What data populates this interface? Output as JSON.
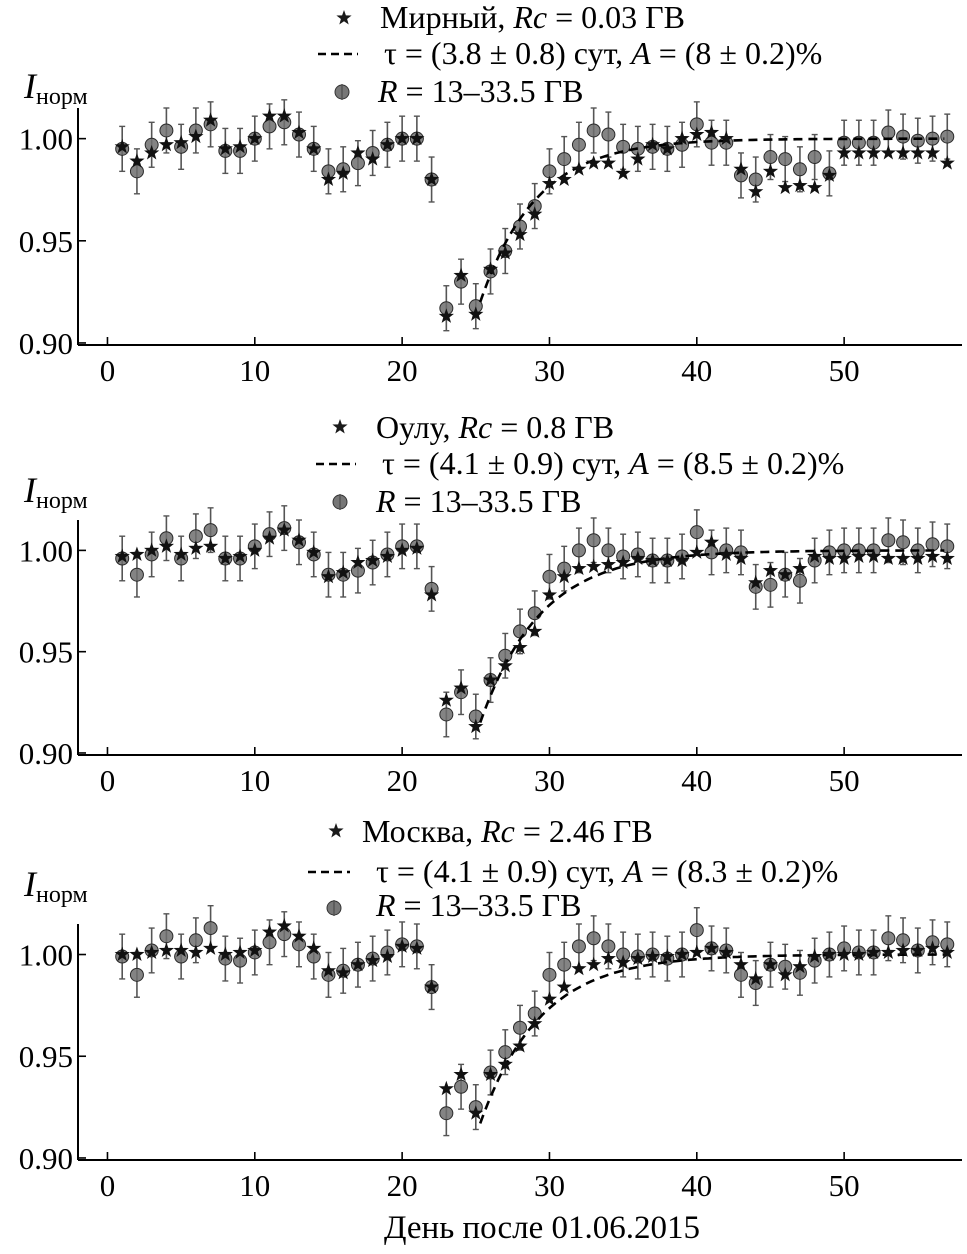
{
  "chart_data": [
    {
      "type": "scatter",
      "station": "Мирный",
      "legend": {
        "station_label": "Мирный, ",
        "rc_var": "Rc",
        "rc_value": " = 0.03 ГВ",
        "fit_tau": "τ = (3.8 ± 0.8) сут, ",
        "fit_a_var": "A",
        "fit_a_value": " = (8 ± 0.2)%",
        "r_var": "R",
        "r_value": " = 13–33.5 ГВ"
      },
      "ylabel": {
        "main": "I",
        "sub": "норм"
      },
      "xlim": [
        -2,
        58
      ],
      "ylim": [
        0.899,
        1.015
      ],
      "xticks": [
        0,
        10,
        20,
        30,
        40,
        50
      ],
      "yticks": [
        0.9,
        0.95,
        1.0
      ],
      "xtick_labels": [
        "0",
        "10",
        "20",
        "30",
        "40",
        "50"
      ],
      "ytick_labels": [
        "0.90",
        "0.95",
        "1.00"
      ],
      "series": [
        {
          "name": "Мирный (stars)",
          "marker": "star",
          "x": [
            1,
            2,
            3,
            4,
            5,
            6,
            7,
            8,
            9,
            10,
            11,
            12,
            13,
            14,
            15,
            16,
            17,
            18,
            19,
            20,
            21,
            22,
            23,
            24,
            25,
            26,
            27,
            28,
            29,
            30,
            31,
            32,
            33,
            34,
            35,
            36,
            37,
            38,
            39,
            40,
            41,
            42,
            43,
            44,
            45,
            46,
            47,
            48,
            49,
            50,
            51,
            52,
            53,
            54,
            55,
            56,
            57
          ],
          "y": [
            0.996,
            0.989,
            0.993,
            0.997,
            0.998,
            1.001,
            1.009,
            0.995,
            0.996,
            1.0,
            1.011,
            1.011,
            1.003,
            0.995,
            0.98,
            0.983,
            0.993,
            0.99,
            0.997,
            1.0,
            1.0,
            0.98,
            0.913,
            0.933,
            0.914,
            0.936,
            0.944,
            0.953,
            0.963,
            0.978,
            0.98,
            0.985,
            0.988,
            0.988,
            0.983,
            0.99,
            0.997,
            0.995,
            1.0,
            1.002,
            1.003,
            1.0,
            0.985,
            0.974,
            0.984,
            0.976,
            0.977,
            0.976,
            0.982,
            0.993,
            0.993,
            0.993,
            0.993,
            0.993,
            0.993,
            0.993,
            0.988
          ]
        },
        {
          "name": "R = 13–33.5 ГВ",
          "marker": "circle",
          "x": [
            1,
            2,
            3,
            4,
            5,
            6,
            7,
            8,
            9,
            10,
            11,
            12,
            13,
            14,
            15,
            16,
            17,
            18,
            19,
            20,
            21,
            22,
            23,
            24,
            25,
            26,
            27,
            28,
            29,
            30,
            31,
            32,
            33,
            34,
            35,
            36,
            37,
            38,
            39,
            40,
            41,
            42,
            43,
            44,
            45,
            46,
            47,
            48,
            49,
            50,
            51,
            52,
            53,
            54,
            55,
            56,
            57
          ],
          "y": [
            0.995,
            0.984,
            0.997,
            1.004,
            0.996,
            1.004,
            1.007,
            0.994,
            0.994,
            1.0,
            1.006,
            1.008,
            1.002,
            0.995,
            0.984,
            0.985,
            0.988,
            0.993,
            0.997,
            1.0,
            1.0,
            0.98,
            0.917,
            0.93,
            0.918,
            0.935,
            0.945,
            0.957,
            0.967,
            0.984,
            0.99,
            0.997,
            1.004,
            1.002,
            0.996,
            0.995,
            0.996,
            0.995,
            0.997,
            1.007,
            0.998,
            0.998,
            0.982,
            0.98,
            0.991,
            0.99,
            0.985,
            0.991,
            0.983,
            0.998,
            0.998,
            0.998,
            1.003,
            1.001,
            0.999,
            1.0,
            1.001
          ],
          "err": 0.011
        },
        {
          "name": "fit",
          "line": "dashed",
          "fit_model": "1 - A*exp(-(x - 25.3)/tau)",
          "tau": 3.8,
          "A": 0.08,
          "fit_start": 25.3,
          "fit_end": 57
        }
      ]
    },
    {
      "type": "scatter",
      "station": "Оулу",
      "legend": {
        "station_label": "Оулу, ",
        "rc_var": "Rc",
        "rc_value": " = 0.8 ГВ",
        "fit_tau": "τ = (4.1 ± 0.9) сут, ",
        "fit_a_var": "A",
        "fit_a_value": " = (8.5 ± 0.2)%",
        "r_var": "R",
        "r_value": " = 13–33.5 ГВ"
      },
      "ylabel": {
        "main": "I",
        "sub": "норм"
      },
      "xlim": [
        -2,
        58
      ],
      "ylim": [
        0.899,
        1.015
      ],
      "xticks": [
        0,
        10,
        20,
        30,
        40,
        50
      ],
      "yticks": [
        0.9,
        0.95,
        1.0
      ],
      "xtick_labels": [
        "0",
        "10",
        "20",
        "30",
        "40",
        "50"
      ],
      "ytick_labels": [
        "0.90",
        "0.95",
        "1.00"
      ],
      "series": [
        {
          "name": "Оулу (stars)",
          "marker": "star",
          "x": [
            1,
            2,
            3,
            4,
            5,
            6,
            7,
            8,
            9,
            10,
            11,
            12,
            13,
            14,
            15,
            16,
            17,
            18,
            19,
            20,
            21,
            22,
            23,
            24,
            25,
            26,
            27,
            28,
            29,
            30,
            31,
            32,
            33,
            34,
            35,
            36,
            37,
            38,
            39,
            40,
            41,
            42,
            43,
            44,
            45,
            46,
            47,
            48,
            49,
            50,
            51,
            52,
            53,
            54,
            55,
            56,
            57
          ],
          "y": [
            0.997,
            0.998,
            1.0,
            1.002,
            0.998,
            1.001,
            1.002,
            0.996,
            0.997,
            1.0,
            1.006,
            1.01,
            1.005,
            0.999,
            0.987,
            0.989,
            0.994,
            0.995,
            0.997,
            1.0,
            1.001,
            0.978,
            0.926,
            0.932,
            0.913,
            0.936,
            0.943,
            0.952,
            0.96,
            0.978,
            0.987,
            0.991,
            0.992,
            0.993,
            0.994,
            0.996,
            0.995,
            0.995,
            0.995,
            0.999,
            1.004,
            0.998,
            0.996,
            0.984,
            0.99,
            0.988,
            0.991,
            0.997,
            0.996,
            0.996,
            0.997,
            0.997,
            0.996,
            0.996,
            0.996,
            0.997,
            0.996
          ]
        },
        {
          "name": "R = 13–33.5 ГВ",
          "marker": "circle",
          "x": [
            1,
            2,
            3,
            4,
            5,
            6,
            7,
            8,
            9,
            10,
            11,
            12,
            13,
            14,
            15,
            16,
            17,
            18,
            19,
            20,
            21,
            22,
            23,
            24,
            25,
            26,
            27,
            28,
            29,
            30,
            31,
            32,
            33,
            34,
            35,
            36,
            37,
            38,
            39,
            40,
            41,
            42,
            43,
            44,
            45,
            46,
            47,
            48,
            49,
            50,
            51,
            52,
            53,
            54,
            55,
            56,
            57
          ],
          "y": [
            0.996,
            0.988,
            0.998,
            1.006,
            0.996,
            1.007,
            1.01,
            0.996,
            0.996,
            1.002,
            1.008,
            1.011,
            1.004,
            0.998,
            0.988,
            0.988,
            0.99,
            0.994,
            0.998,
            1.002,
            1.002,
            0.981,
            0.919,
            0.93,
            0.918,
            0.936,
            0.948,
            0.96,
            0.969,
            0.987,
            0.991,
            1.0,
            1.005,
            1.0,
            0.997,
            0.998,
            0.995,
            0.995,
            0.997,
            1.009,
            0.999,
            1.0,
            0.999,
            0.982,
            0.983,
            0.988,
            0.985,
            0.995,
            0.999,
            1.0,
            1.0,
            1.0,
            1.005,
            1.004,
            1.0,
            1.003,
            1.002
          ],
          "err": 0.011
        },
        {
          "name": "fit",
          "line": "dashed",
          "fit_model": "1 - A*exp(-(x - 25.3)/tau)",
          "tau": 4.1,
          "A": 0.085,
          "fit_start": 25.3,
          "fit_end": 57
        }
      ]
    },
    {
      "type": "scatter",
      "station": "Москва",
      "legend": {
        "station_label": "Москва, ",
        "rc_var": "Rc",
        "rc_value": " = 2.46 ГВ",
        "fit_tau": "τ = (4.1 ± 0.9) сут, ",
        "fit_a_var": "A",
        "fit_a_value": " = (8.3 ± 0.2)%",
        "r_var": "R",
        "r_value": " = 13–33.5 ГВ"
      },
      "ylabel": {
        "main": "I",
        "sub": "норм"
      },
      "xlabel": "День после 01.06.2015",
      "xlim": [
        -2,
        58
      ],
      "ylim": [
        0.899,
        1.015
      ],
      "xticks": [
        0,
        10,
        20,
        30,
        40,
        50
      ],
      "yticks": [
        0.9,
        0.95,
        1.0
      ],
      "xtick_labels": [
        "0",
        "10",
        "20",
        "30",
        "40",
        "50"
      ],
      "ytick_labels": [
        "0.90",
        "0.95",
        "1.00"
      ],
      "series": [
        {
          "name": "Москва (stars)",
          "marker": "star",
          "x": [
            1,
            2,
            3,
            4,
            5,
            6,
            7,
            8,
            9,
            10,
            11,
            12,
            13,
            14,
            15,
            16,
            17,
            18,
            19,
            20,
            21,
            22,
            23,
            24,
            25,
            26,
            27,
            28,
            29,
            30,
            31,
            32,
            33,
            34,
            35,
            36,
            37,
            38,
            39,
            40,
            41,
            42,
            43,
            44,
            45,
            46,
            47,
            48,
            49,
            50,
            51,
            52,
            53,
            54,
            55,
            56,
            57
          ],
          "y": [
            1.0,
            1.0,
            1.001,
            1.002,
            1.002,
            1.001,
            1.003,
            1.0,
            1.001,
            1.002,
            1.011,
            1.014,
            1.009,
            1.003,
            0.992,
            0.991,
            0.995,
            0.997,
            0.999,
            1.004,
            1.003,
            0.984,
            0.934,
            0.941,
            0.922,
            0.941,
            0.946,
            0.955,
            0.966,
            0.978,
            0.984,
            0.993,
            0.995,
            0.998,
            0.996,
            0.998,
            0.999,
            0.999,
            1.0,
            1.001,
            1.003,
            1.001,
            0.995,
            0.988,
            0.995,
            0.99,
            0.994,
            0.999,
            1.0,
            1.0,
            1.0,
            1.001,
            1.001,
            1.002,
            1.002,
            1.003,
            1.001
          ]
        },
        {
          "name": "R = 13–33.5 ГВ",
          "marker": "circle",
          "x": [
            1,
            2,
            3,
            4,
            5,
            6,
            7,
            8,
            9,
            10,
            11,
            12,
            13,
            14,
            15,
            16,
            17,
            18,
            19,
            20,
            21,
            22,
            23,
            24,
            25,
            26,
            27,
            28,
            29,
            30,
            31,
            32,
            33,
            34,
            35,
            36,
            37,
            38,
            39,
            40,
            41,
            42,
            43,
            44,
            45,
            46,
            47,
            48,
            49,
            50,
            51,
            52,
            53,
            54,
            55,
            56,
            57
          ],
          "y": [
            0.999,
            0.99,
            1.002,
            1.009,
            0.999,
            1.007,
            1.013,
            0.998,
            0.997,
            1.001,
            1.006,
            1.01,
            1.005,
            0.999,
            0.99,
            0.992,
            0.995,
            0.998,
            1.001,
            1.005,
            1.004,
            0.984,
            0.922,
            0.935,
            0.925,
            0.942,
            0.952,
            0.964,
            0.971,
            0.99,
            0.995,
            1.004,
            1.008,
            1.004,
            1.0,
            0.999,
            1.0,
            0.998,
            1.0,
            1.012,
            1.003,
            1.002,
            0.99,
            0.986,
            0.995,
            0.994,
            0.991,
            0.997,
            1.0,
            1.003,
            1.001,
            1.001,
            1.008,
            1.007,
            1.002,
            1.006,
            1.005
          ],
          "err": 0.011
        },
        {
          "name": "fit",
          "line": "dashed",
          "fit_model": "1 - A*exp(-(x - 25.3)/tau)",
          "tau": 4.1,
          "A": 0.083,
          "fit_start": 25.3,
          "fit_end": 57
        }
      ]
    }
  ]
}
